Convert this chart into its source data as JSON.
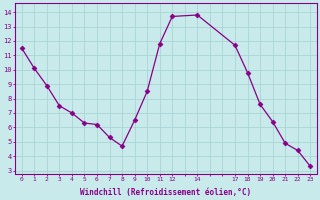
{
  "hours": [
    0,
    1,
    2,
    3,
    4,
    5,
    6,
    7,
    8,
    9,
    10,
    11,
    12,
    14,
    17,
    18,
    19,
    20,
    21,
    22,
    23
  ],
  "y": [
    11.5,
    10.1,
    8.9,
    7.5,
    7.0,
    6.3,
    6.2,
    5.3,
    4.7,
    6.5,
    8.5,
    11.8,
    13.7,
    13.8,
    11.7,
    9.8,
    7.6,
    6.4,
    4.9,
    4.4,
    3.3
  ],
  "x_all": [
    0,
    1,
    2,
    3,
    4,
    5,
    6,
    7,
    8,
    9,
    10,
    11,
    12,
    13,
    14,
    15,
    16,
    17,
    18,
    19,
    20,
    21,
    22,
    23
  ],
  "xtick_labels": [
    "0",
    "1",
    "2",
    "3",
    "4",
    "5",
    "6",
    "7",
    "8",
    "9",
    "10",
    "11",
    "12",
    "",
    "14",
    "",
    "",
    "17",
    "18",
    "19",
    "20",
    "21",
    "22",
    "23"
  ],
  "yticks": [
    3,
    4,
    5,
    6,
    7,
    8,
    9,
    10,
    11,
    12,
    13,
    14
  ],
  "line_color": "#880088",
  "marker": "D",
  "marker_size": 2.5,
  "bg_color": "#c8eaea",
  "grid_color": "#aad4d4",
  "xlabel": "Windchill (Refroidissement éolien,°C)",
  "xlabel_color": "#880088",
  "tick_color": "#880088",
  "ylim": [
    2.8,
    14.6
  ],
  "spine_color": "#880088"
}
